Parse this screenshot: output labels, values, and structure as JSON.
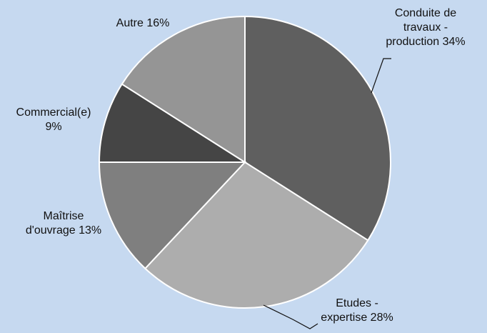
{
  "chart_data": {
    "type": "pie",
    "start_angle_deg": 0,
    "direction": "clockwise",
    "slices": [
      {
        "line1": "Conduite de",
        "line2": "travaux -",
        "line3": "production 34%",
        "value": 34,
        "color": "#5f5f5f"
      },
      {
        "line1": "Etudes -",
        "line2": "expertise 28%",
        "line3": "",
        "value": 28,
        "color": "#adadad"
      },
      {
        "line1": "Maîtrise",
        "line2": "d'ouvrage 13%",
        "line3": "",
        "value": 13,
        "color": "#7f7f7f"
      },
      {
        "line1": "Commercial(e)",
        "line2": "9%",
        "line3": "",
        "value": 9,
        "color": "#454545"
      },
      {
        "line1": "Autre 16%",
        "line2": "",
        "line3": "",
        "value": 16,
        "color": "#959595"
      }
    ]
  }
}
